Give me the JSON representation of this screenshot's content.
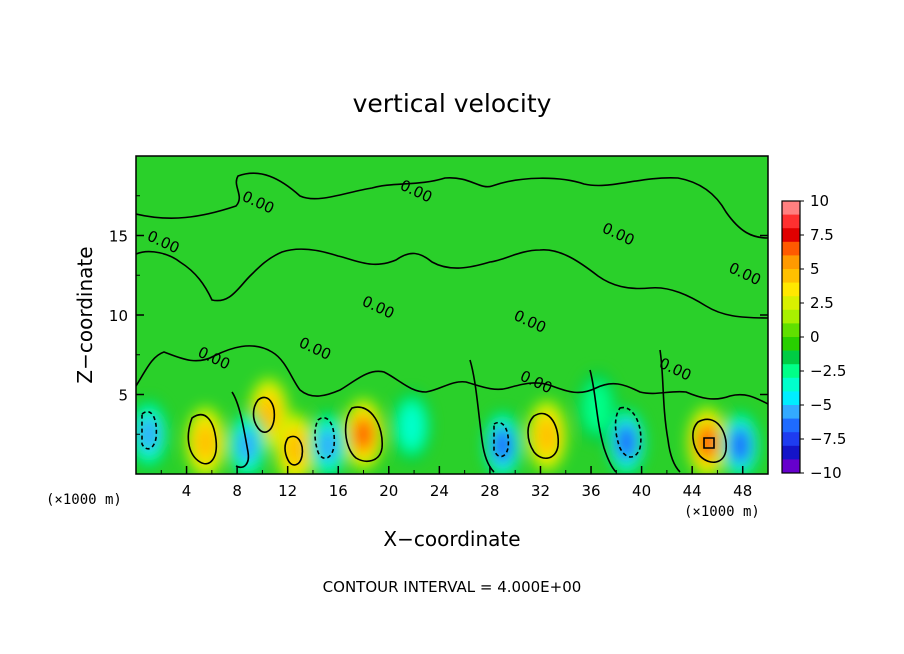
{
  "chart_data": {
    "type": "heatmap",
    "title": "vertical velocity",
    "xlabel": "X−coordinate",
    "ylabel": "Z−coordinate",
    "x_unit_note": "(×1000 m)",
    "x_unit_note_right": "(×1000 m)",
    "xlim": [
      0,
      50
    ],
    "ylim": [
      0,
      20
    ],
    "xticks": [
      "4",
      "8",
      "12",
      "16",
      "20",
      "24",
      "28",
      "32",
      "36",
      "40",
      "44",
      "48"
    ],
    "xtick_values": [
      4,
      8,
      12,
      16,
      20,
      24,
      28,
      32,
      36,
      40,
      44,
      48
    ],
    "yticks": [
      "5",
      "10",
      "15"
    ],
    "ytick_values": [
      5,
      10,
      15
    ],
    "footer": "CONTOUR INTERVAL = 4.000E+00",
    "colorbar": {
      "range": [
        -10,
        10
      ],
      "labels": [
        "10",
        "7.5",
        "5",
        "2.5",
        "0",
        "−2.5",
        "−5",
        "−7.5",
        "−10"
      ],
      "label_values": [
        10,
        7.5,
        5,
        2.5,
        0,
        -2.5,
        -5,
        -7.5,
        -10
      ],
      "colors": [
        "#ff8080",
        "#ff3030",
        "#e00000",
        "#ff5a00",
        "#ff9a00",
        "#ffc000",
        "#ffe800",
        "#d8f000",
        "#a8f000",
        "#60e000",
        "#28d000",
        "#00cc44",
        "#00ff88",
        "#00ffcc",
        "#00eeff",
        "#33aaff",
        "#1e6bff",
        "#1e3cf0",
        "#1414c8",
        "#6600cc"
      ]
    },
    "cells": [
      {
        "x": 5.5,
        "z": 2.0,
        "w": 5.2
      },
      {
        "x": 10.5,
        "z": 3.8,
        "w": 4.8
      },
      {
        "x": 12.6,
        "z": 1.6,
        "w": 4.6
      },
      {
        "x": 18.0,
        "z": 2.5,
        "w": 5.8
      },
      {
        "x": 32.5,
        "z": 2.4,
        "w": 5.4
      },
      {
        "x": 45.2,
        "z": 2.0,
        "w": 6.2
      },
      {
        "x": 1.0,
        "z": 2.5,
        "w": -4.5
      },
      {
        "x": 8.8,
        "z": 1.8,
        "w": -5.0
      },
      {
        "x": 15.2,
        "z": 1.8,
        "w": -5.5
      },
      {
        "x": 21.8,
        "z": 3.0,
        "w": -3.5
      },
      {
        "x": 29.0,
        "z": 1.8,
        "w": -6.5
      },
      {
        "x": 38.8,
        "z": 2.0,
        "w": -6.5
      },
      {
        "x": 47.8,
        "z": 1.8,
        "w": -6.0
      },
      {
        "x": 36.5,
        "z": 4.2,
        "w": -3.0
      }
    ],
    "contour_labels": [
      {
        "text": "0.00",
        "x": 9.5,
        "z": 16.8
      },
      {
        "text": "0.00",
        "x": 2.0,
        "z": 14.3
      },
      {
        "text": "0.00",
        "x": 22.0,
        "z": 17.5
      },
      {
        "text": "0.00",
        "x": 38.0,
        "z": 14.8
      },
      {
        "text": "0.00",
        "x": 48.0,
        "z": 12.3
      },
      {
        "text": "0.00",
        "x": 19.0,
        "z": 10.2
      },
      {
        "text": "0.00",
        "x": 31.0,
        "z": 9.3
      },
      {
        "text": "0.00",
        "x": 14.0,
        "z": 7.6
      },
      {
        "text": "0.00",
        "x": 6.0,
        "z": 7.0
      },
      {
        "text": "0.00",
        "x": 31.5,
        "z": 5.5
      },
      {
        "text": "0.00",
        "x": 42.5,
        "z": 6.3
      }
    ]
  }
}
